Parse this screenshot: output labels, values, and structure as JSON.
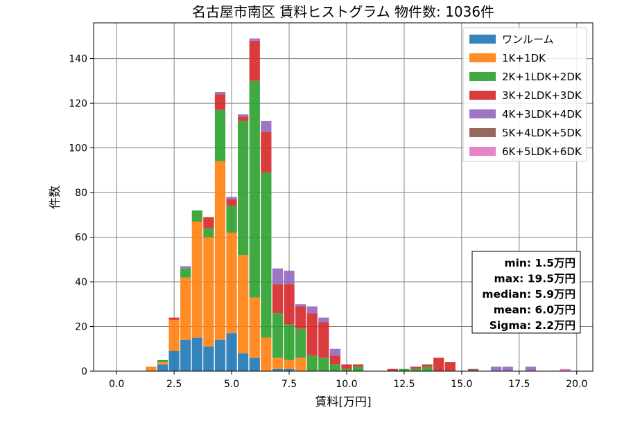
{
  "chart_data": {
    "type": "bar",
    "stacked": true,
    "title": "名古屋市南区 賃料ヒストグラム  物件数: 1036件",
    "xlabel": "賃料[万円]",
    "ylabel": "件数",
    "xlim": [
      -1.0,
      20.7
    ],
    "ylim": [
      0,
      156
    ],
    "bin_width": 0.5,
    "grid": true,
    "legend_position": "top-right",
    "x_ticks": [
      {
        "value": 0,
        "label": "0.0"
      },
      {
        "value": 2.5,
        "label": "2.5"
      },
      {
        "value": 5,
        "label": "5.0"
      },
      {
        "value": 7.5,
        "label": "7.5"
      },
      {
        "value": 10,
        "label": "10.0"
      },
      {
        "value": 12.5,
        "label": "12.5"
      },
      {
        "value": 15,
        "label": "15.0"
      },
      {
        "value": 17.5,
        "label": "17.5"
      },
      {
        "value": 20,
        "label": "20.0"
      }
    ],
    "y_ticks": [
      {
        "value": 0,
        "label": "0"
      },
      {
        "value": 20,
        "label": "20"
      },
      {
        "value": 40,
        "label": "40"
      },
      {
        "value": 60,
        "label": "60"
      },
      {
        "value": 80,
        "label": "80"
      },
      {
        "value": 100,
        "label": "100"
      },
      {
        "value": 120,
        "label": "120"
      },
      {
        "value": 140,
        "label": "140"
      }
    ],
    "x": [
      1.5,
      2.0,
      2.5,
      3.0,
      3.5,
      4.0,
      4.5,
      5.0,
      5.5,
      6.0,
      6.5,
      7.0,
      7.5,
      8.0,
      8.5,
      9.0,
      9.5,
      10.0,
      10.5,
      12.0,
      12.5,
      13.0,
      13.5,
      14.0,
      14.5,
      15.5,
      16.5,
      17.0,
      18.0,
      19.5
    ],
    "series": [
      {
        "name": "ワンルーム",
        "color": "#1f77b4",
        "values": [
          0,
          3,
          9,
          14,
          15,
          11,
          14,
          17,
          8,
          6,
          0,
          1,
          1,
          0,
          0,
          0,
          0,
          0,
          0,
          0,
          0,
          0,
          0,
          0,
          0,
          0,
          0,
          0,
          0,
          0
        ]
      },
      {
        "name": "1K+1DK",
        "color": "#ff7f0e",
        "values": [
          2,
          1,
          14,
          28,
          52,
          49,
          80,
          45,
          44,
          27,
          15,
          5,
          4,
          6,
          0,
          0,
          0,
          0,
          0,
          0,
          0,
          0,
          0,
          0,
          0,
          0,
          0,
          0,
          0,
          0
        ]
      },
      {
        "name": "2K+1LDK+2DK",
        "color": "#2ca02c",
        "values": [
          0,
          1,
          0,
          4,
          5,
          4,
          23,
          12,
          60,
          97,
          74,
          20,
          16,
          13,
          7,
          6,
          3,
          1,
          2,
          0,
          1,
          1,
          2,
          0,
          0,
          0,
          0,
          0,
          0,
          0
        ]
      },
      {
        "name": "3K+2LDK+3DK",
        "color": "#d62728",
        "values": [
          0,
          0,
          1,
          0,
          0,
          5,
          7,
          3,
          2,
          18,
          18,
          13,
          18,
          10,
          19,
          16,
          4,
          2,
          1,
          1,
          0,
          1,
          1,
          6,
          4,
          0,
          0,
          0,
          0,
          0
        ]
      },
      {
        "name": "4K+3LDK+4DK",
        "color": "#9467bd",
        "values": [
          0,
          0,
          0,
          1,
          0,
          0,
          1,
          1,
          1,
          1,
          5,
          7,
          6,
          1,
          3,
          2,
          3,
          0,
          0,
          0,
          0,
          0,
          0,
          0,
          0,
          0,
          2,
          2,
          2,
          0
        ]
      },
      {
        "name": "5K+4LDK+5DK",
        "color": "#8c564b",
        "values": [
          0,
          0,
          0,
          0,
          0,
          0,
          0,
          0,
          0,
          0,
          0,
          0,
          0,
          0,
          0,
          0,
          0,
          0,
          0,
          0,
          0,
          0,
          0,
          0,
          0,
          1,
          0,
          0,
          0,
          0
        ]
      },
      {
        "name": "6K+5LDK+6DK",
        "color": "#e377c2",
        "values": [
          0,
          0,
          0,
          0,
          0,
          0,
          0,
          0,
          0,
          0,
          0,
          0,
          0,
          0,
          0,
          0,
          0,
          0,
          0,
          0,
          0,
          0,
          0,
          0,
          0,
          0,
          0,
          0,
          0,
          1
        ]
      }
    ],
    "stats_box": {
      "position": "right",
      "lines": [
        "min: 1.5万円",
        "max: 19.5万円",
        "median: 5.9万円",
        "mean: 6.0万円",
        "Sigma: 2.2万円"
      ]
    }
  }
}
